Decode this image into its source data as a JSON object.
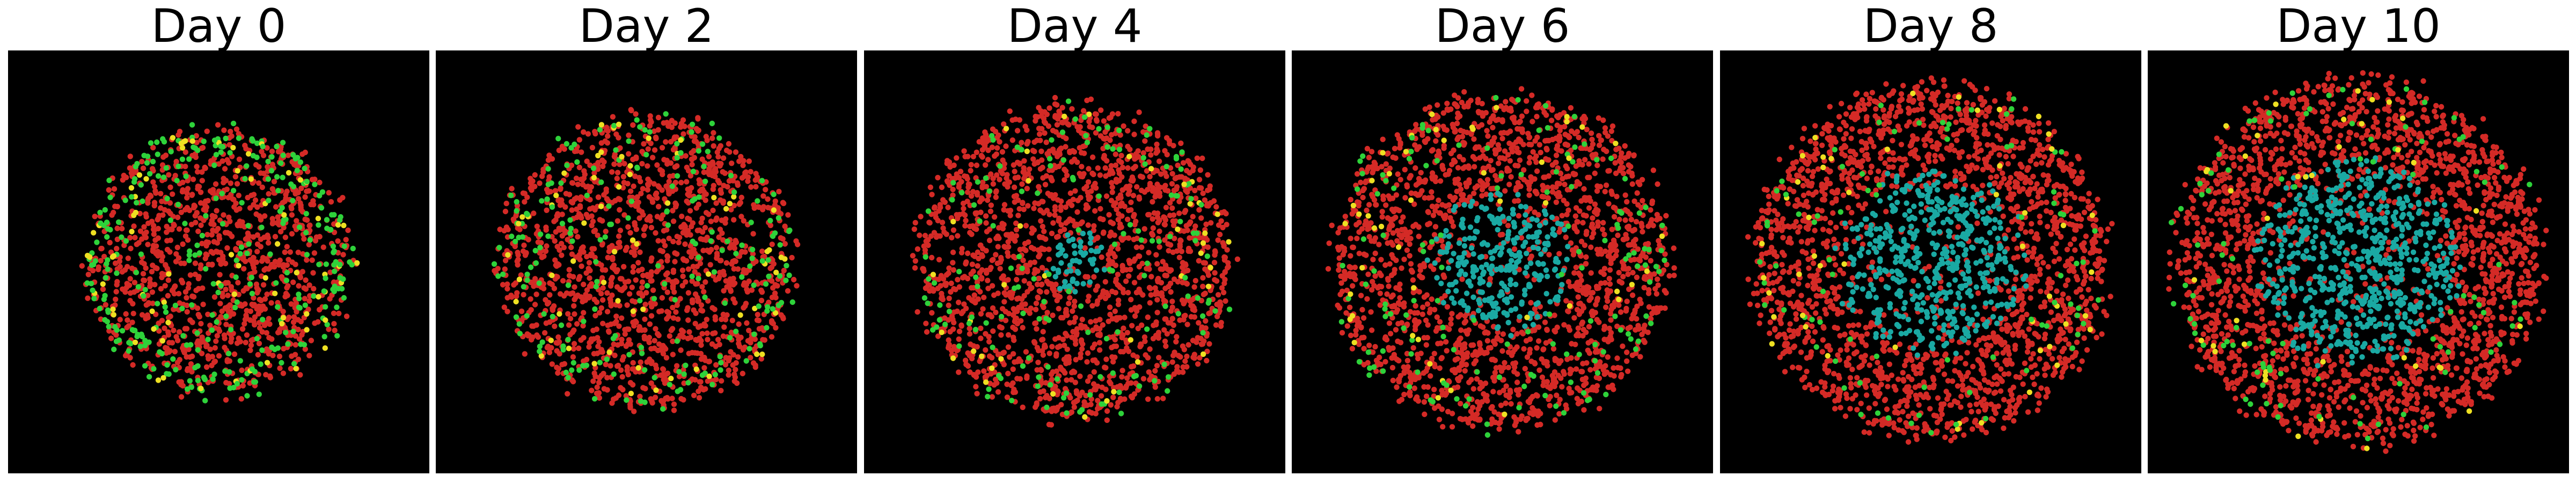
{
  "colors": {
    "background": "#000000",
    "red": "#d42a26",
    "cyan": "#1aa9a3",
    "green": "#2ed23a",
    "yellow": "#eee022"
  },
  "panels": [
    {
      "title": "Day 0",
      "spread": 0.62,
      "core": 0.0,
      "green": 0.15,
      "yellow": 0.04,
      "ring": 1
    },
    {
      "title": "Day 2",
      "spread": 0.68,
      "core": 0.02,
      "green": 0.1,
      "yellow": 0.03,
      "ring": 0
    },
    {
      "title": "Day 4",
      "spread": 0.73,
      "core": 0.13,
      "green": 0.06,
      "yellow": 0.02,
      "ring": 0
    },
    {
      "title": "Day 6",
      "spread": 0.78,
      "core": 0.3,
      "green": 0.05,
      "yellow": 0.02,
      "ring": 0
    },
    {
      "title": "Day 8",
      "spread": 0.82,
      "core": 0.4,
      "green": 0.04,
      "yellow": 0.02,
      "ring": 0
    },
    {
      "title": "Day 10",
      "spread": 0.85,
      "core": 0.44,
      "green": 0.04,
      "yellow": 0.02,
      "ring": 0
    }
  ]
}
